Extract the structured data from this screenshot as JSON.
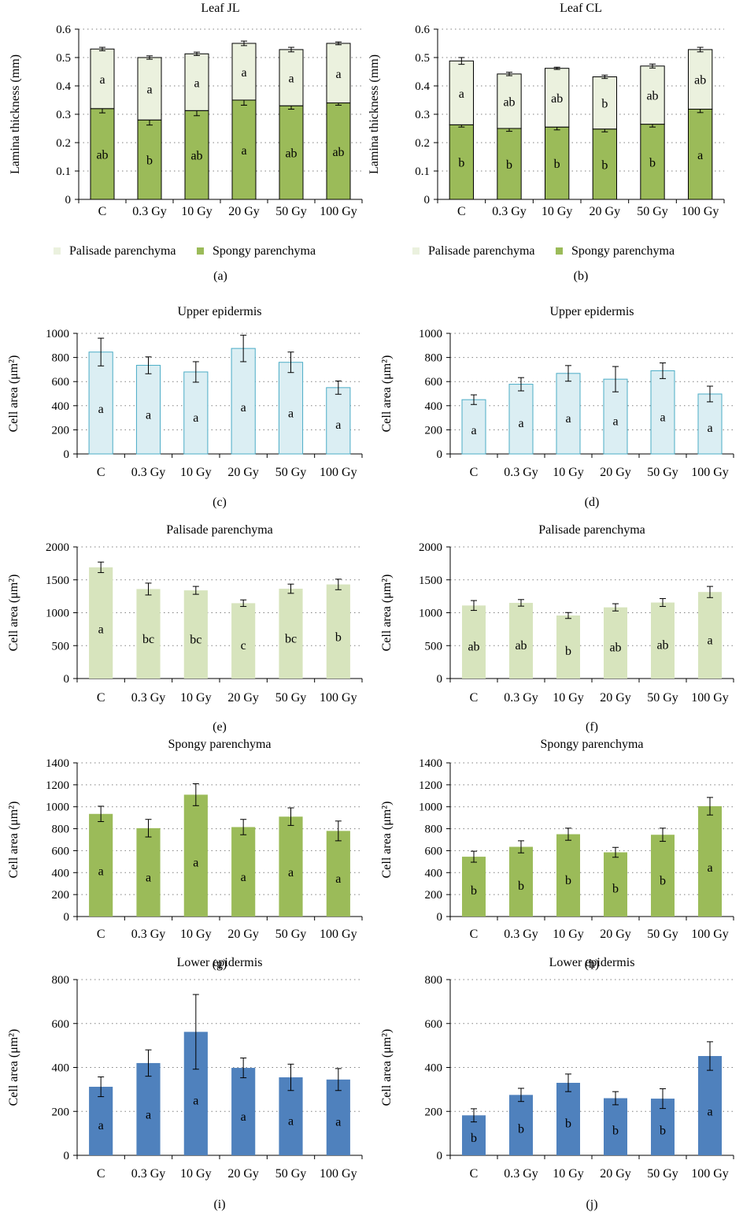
{
  "figure": {
    "panel_labels": [
      "(a)",
      "(b)",
      "(c)",
      "(d)",
      "(e)",
      "(f)",
      "(g)",
      "(h)",
      "(i)",
      "(j)"
    ]
  },
  "colors": {
    "palisade": "#d7e4bd",
    "palisade_stacked": "#ebf1de",
    "spongy": "#9bbb59",
    "upper_epidermis_fill": "#dbeef3",
    "upper_epidermis_stroke": "#4bacc6",
    "lower_epidermis": "#4f81bd",
    "axis": "#000000",
    "grid": "#808080"
  },
  "chart_data": [
    {
      "type": "bar",
      "stacked": true,
      "title": "Leaf JL",
      "ylabel": "Lamina thickness (mm)",
      "categories": [
        "C",
        "0.3 Gy",
        "10 Gy",
        "20 Gy",
        "50 Gy",
        "100 Gy"
      ],
      "ylim": [
        0,
        0.6
      ],
      "yticks": [
        "0",
        "0.1",
        "0.2",
        "0.3",
        "0.4",
        "0.5",
        "0.6"
      ],
      "grid": true,
      "legend_position": "bottom",
      "series": [
        {
          "name": "Spongy parenchyma",
          "values": [
            0.32,
            0.28,
            0.313,
            0.35,
            0.33,
            0.34
          ],
          "errors": [
            0.015,
            0.018,
            0.018,
            0.018,
            0.012,
            0.008
          ],
          "letters": [
            "ab",
            "b",
            "ab",
            "a",
            "ab",
            "ab"
          ]
        },
        {
          "name": "Palisade parenchyma",
          "values": [
            0.21,
            0.22,
            0.2,
            0.2,
            0.198,
            0.21
          ],
          "errors": [
            0.006,
            0.006,
            0.006,
            0.008,
            0.008,
            0.005
          ],
          "letters": [
            "a",
            "a",
            "a",
            "a",
            "a",
            "a"
          ]
        }
      ]
    },
    {
      "type": "bar",
      "stacked": true,
      "title": "Leaf CL",
      "ylabel": "Lamina thickness (mm)",
      "categories": [
        "C",
        "0.3 Gy",
        "10 Gy",
        "20 Gy",
        "50 Gy",
        "100 Gy"
      ],
      "ylim": [
        0,
        0.6
      ],
      "yticks": [
        "0",
        "0.1",
        "0.2",
        "0.3",
        "0.4",
        "0.5",
        "0.6"
      ],
      "grid": true,
      "legend_position": "bottom",
      "series": [
        {
          "name": "Spongy parenchyma",
          "values": [
            0.263,
            0.25,
            0.255,
            0.248,
            0.265,
            0.318
          ],
          "errors": [
            0.008,
            0.01,
            0.01,
            0.01,
            0.01,
            0.012
          ],
          "letters": [
            "b",
            "b",
            "b",
            "b",
            "b",
            "a"
          ]
        },
        {
          "name": "Palisade parenchyma",
          "values": [
            0.225,
            0.192,
            0.207,
            0.184,
            0.205,
            0.21
          ],
          "errors": [
            0.012,
            0.006,
            0.004,
            0.006,
            0.007,
            0.008
          ],
          "letters": [
            "a",
            "ab",
            "ab",
            "b",
            "ab",
            "ab"
          ]
        }
      ]
    },
    {
      "type": "bar",
      "title": "Upper epidermis",
      "ylabel": "Cell area (μm²)",
      "categories": [
        "C",
        "0.3 Gy",
        "10 Gy",
        "20 Gy",
        "50 Gy",
        "100 Gy"
      ],
      "ylim": [
        0,
        1000
      ],
      "yticks": [
        "0",
        "200",
        "400",
        "600",
        "800",
        "1000"
      ],
      "grid": true,
      "values": [
        845,
        735,
        680,
        875,
        760,
        550
      ],
      "errors": [
        115,
        70,
        85,
        110,
        85,
        55
      ],
      "letters": [
        "a",
        "a",
        "a",
        "a",
        "a",
        "a"
      ]
    },
    {
      "type": "bar",
      "title": "Upper epidermis",
      "ylabel": "Cell area (μm²)",
      "categories": [
        "C",
        "0.3 Gy",
        "10 Gy",
        "20 Gy",
        "50 Gy",
        "100 Gy"
      ],
      "ylim": [
        0,
        1000
      ],
      "yticks": [
        "0",
        "200",
        "400",
        "600",
        "800",
        "1000"
      ],
      "grid": true,
      "values": [
        450,
        578,
        668,
        620,
        690,
        497
      ],
      "errors": [
        40,
        55,
        65,
        105,
        65,
        65
      ],
      "letters": [
        "a",
        "a",
        "a",
        "a",
        "a",
        "a"
      ]
    },
    {
      "type": "bar",
      "title": "Palisade parenchyma",
      "ylabel": "Cell area (μm²)",
      "categories": [
        "C",
        "0.3 Gy",
        "10 Gy",
        "20 Gy",
        "50 Gy",
        "100 Gy"
      ],
      "ylim": [
        0,
        2000
      ],
      "yticks": [
        "0",
        "500",
        "1000",
        "1500",
        "2000"
      ],
      "grid": true,
      "values": [
        1690,
        1360,
        1340,
        1145,
        1365,
        1430
      ],
      "errors": [
        80,
        90,
        60,
        50,
        70,
        80
      ],
      "letters": [
        "a",
        "bc",
        "bc",
        "c",
        "bc",
        "b"
      ]
    },
    {
      "type": "bar",
      "title": "Palisade parenchyma",
      "ylabel": "Cell area (μm²)",
      "categories": [
        "C",
        "0.3 Gy",
        "10 Gy",
        "20 Gy",
        "50 Gy",
        "100 Gy"
      ],
      "ylim": [
        0,
        2000
      ],
      "yticks": [
        "0",
        "500",
        "1000",
        "1500",
        "2000"
      ],
      "grid": true,
      "values": [
        1110,
        1150,
        958,
        1082,
        1155,
        1315
      ],
      "errors": [
        75,
        50,
        45,
        55,
        60,
        85
      ],
      "letters": [
        "ab",
        "ab",
        "b",
        "ab",
        "ab",
        "a"
      ]
    },
    {
      "type": "bar",
      "title": "Spongy parenchyma",
      "ylabel": "Cell area (μm²)",
      "categories": [
        "C",
        "0.3 Gy",
        "10 Gy",
        "20 Gy",
        "50 Gy",
        "100 Gy"
      ],
      "ylim": [
        0,
        1400
      ],
      "yticks": [
        "0",
        "200",
        "400",
        "600",
        "800",
        "1000",
        "1200",
        "1400"
      ],
      "grid": true,
      "values": [
        935,
        805,
        1110,
        815,
        910,
        780
      ],
      "errors": [
        70,
        80,
        100,
        70,
        80,
        90
      ],
      "letters": [
        "a",
        "a",
        "a",
        "a",
        "a",
        "a"
      ]
    },
    {
      "type": "bar",
      "title": "Spongy parenchyma",
      "ylabel": "Cell area (μm²)",
      "categories": [
        "C",
        "0.3 Gy",
        "10 Gy",
        "20 Gy",
        "50 Gy",
        "100 Gy"
      ],
      "ylim": [
        0,
        1400
      ],
      "yticks": [
        "0",
        "200",
        "400",
        "600",
        "800",
        "1000",
        "1200",
        "1400"
      ],
      "grid": true,
      "values": [
        545,
        635,
        750,
        585,
        745,
        1005
      ],
      "errors": [
        50,
        55,
        55,
        45,
        60,
        80
      ],
      "letters": [
        "b",
        "b",
        "b",
        "b",
        "b",
        "a"
      ]
    },
    {
      "type": "bar",
      "title": "Lower epidermis",
      "ylabel": "Cell area (μm²)",
      "categories": [
        "C",
        "0.3 Gy",
        "10 Gy",
        "20 Gy",
        "50 Gy",
        "100 Gy"
      ],
      "ylim": [
        0,
        800
      ],
      "yticks": [
        "0",
        "200",
        "400",
        "600",
        "800"
      ],
      "grid": true,
      "values": [
        312,
        420,
        562,
        398,
        355,
        345
      ],
      "errors": [
        45,
        60,
        170,
        45,
        60,
        50
      ],
      "letters": [
        "a",
        "a",
        "a",
        "a",
        "a",
        "a"
      ]
    },
    {
      "type": "bar",
      "title": "Lower epidermis",
      "ylabel": "Cell area (μm²)",
      "categories": [
        "C",
        "0.3 Gy",
        "10 Gy",
        "20 Gy",
        "50 Gy",
        "100 Gy"
      ],
      "ylim": [
        0,
        800
      ],
      "yticks": [
        "0",
        "200",
        "400",
        "600",
        "800"
      ],
      "grid": true,
      "values": [
        182,
        275,
        330,
        260,
        258,
        452
      ],
      "errors": [
        30,
        30,
        40,
        30,
        45,
        65
      ],
      "letters": [
        "b",
        "b",
        "b",
        "b",
        "b",
        "a"
      ]
    }
  ]
}
